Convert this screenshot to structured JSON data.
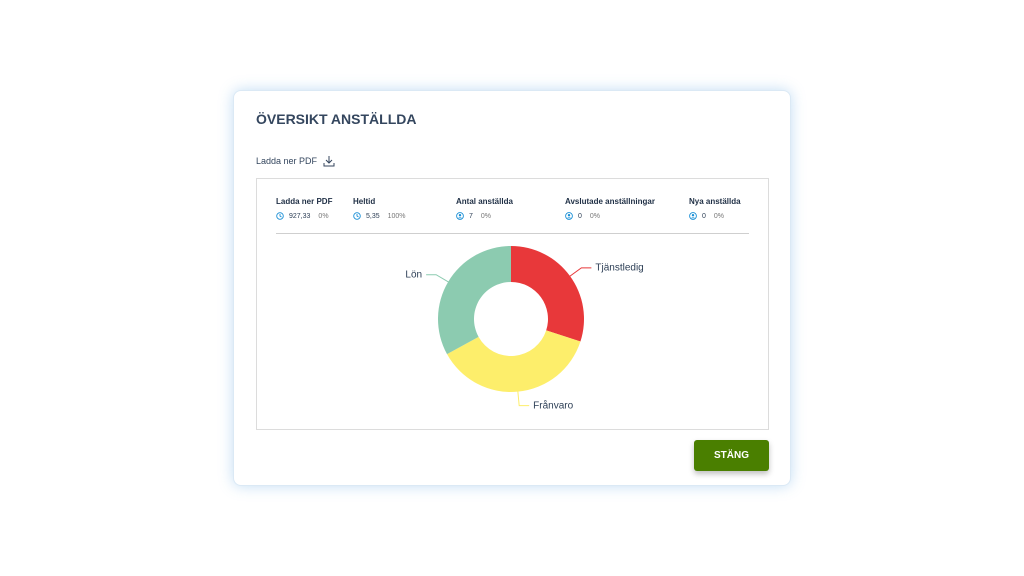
{
  "header": {
    "title": "ÖVERSIKT ANSTÄLLDA"
  },
  "download": {
    "label": "Ladda ner PDF"
  },
  "stats": [
    {
      "label": "Ladda ner PDF",
      "value": "927,33",
      "percent": "0%",
      "icon": "clock"
    },
    {
      "label": "Heltid",
      "value": "5,35",
      "percent": "100%",
      "icon": "clock"
    },
    {
      "label": "Antal anställda",
      "value": "7",
      "percent": "0%",
      "icon": "person"
    },
    {
      "label": "Avslutade anställningar",
      "value": "0",
      "percent": "0%",
      "icon": "person"
    },
    {
      "label": "Nya anställda",
      "value": "0",
      "percent": "0%",
      "icon": "person"
    }
  ],
  "chart_data": {
    "type": "pie",
    "donut": true,
    "categories": [
      "Tjänstledig",
      "Frånvaro",
      "Lön"
    ],
    "values": [
      30,
      37,
      33
    ],
    "colors": [
      "#e8383a",
      "#fdee6b",
      "#8ccbb0"
    ]
  },
  "button": {
    "label": "STÄNG"
  }
}
